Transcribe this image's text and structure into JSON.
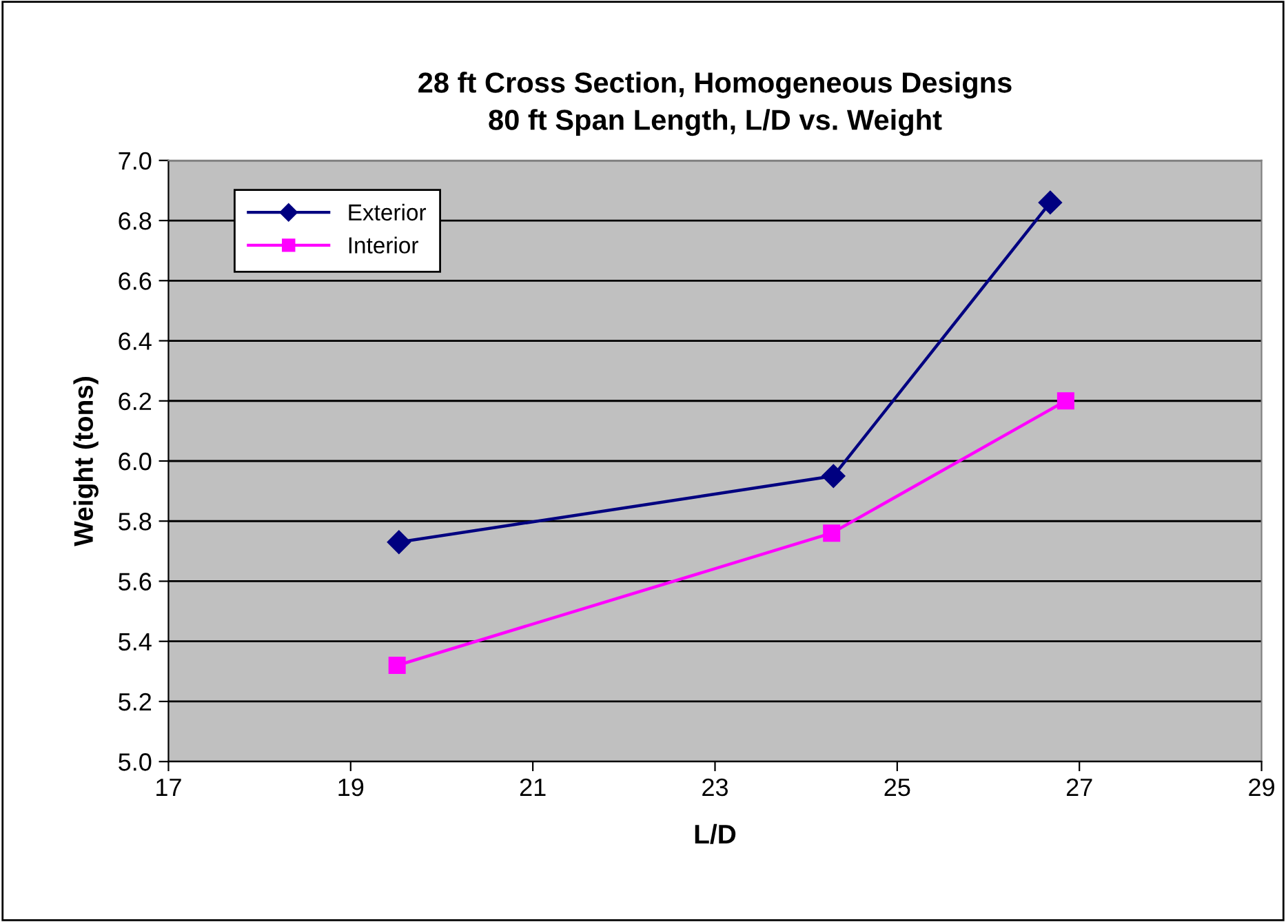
{
  "chart_data": {
    "type": "line",
    "title": "28 ft Cross Section, Homogeneous Designs\n80 ft Span Length, L/D vs. Weight",
    "xlabel": "L/D",
    "ylabel": "Weight (tons)",
    "series": [
      {
        "name": "Exterior",
        "color": "#000080",
        "marker": "diamond",
        "x": [
          19.53,
          24.3,
          26.68
        ],
        "values": [
          5.73,
          5.95,
          6.86
        ]
      },
      {
        "name": "Interior",
        "color": "#ff00ff",
        "marker": "square",
        "x": [
          19.51,
          24.28,
          26.85
        ],
        "values": [
          5.32,
          5.76,
          6.2
        ]
      }
    ],
    "xlim": [
      17,
      29
    ],
    "xticks": [
      17,
      19,
      21,
      23,
      25,
      27,
      29
    ],
    "ylim": [
      5.0,
      7.0
    ],
    "yticks": [
      {
        "value": 5.0,
        "label": "5.0"
      },
      {
        "value": 5.2,
        "label": "5.2"
      },
      {
        "value": 5.4,
        "label": "5.4"
      },
      {
        "value": 5.6,
        "label": "5.6"
      },
      {
        "value": 5.8,
        "label": "5.8"
      },
      {
        "value": 6.0,
        "label": "6.0"
      },
      {
        "value": 6.2,
        "label": "6.2"
      },
      {
        "value": 6.4,
        "label": "6.4"
      },
      {
        "value": 6.6,
        "label": "6.6"
      },
      {
        "value": 6.8,
        "label": "6.8"
      },
      {
        "value": 7.0,
        "label": "7.0"
      }
    ],
    "grid": "y",
    "legend": "top left",
    "line_style": "solid"
  }
}
